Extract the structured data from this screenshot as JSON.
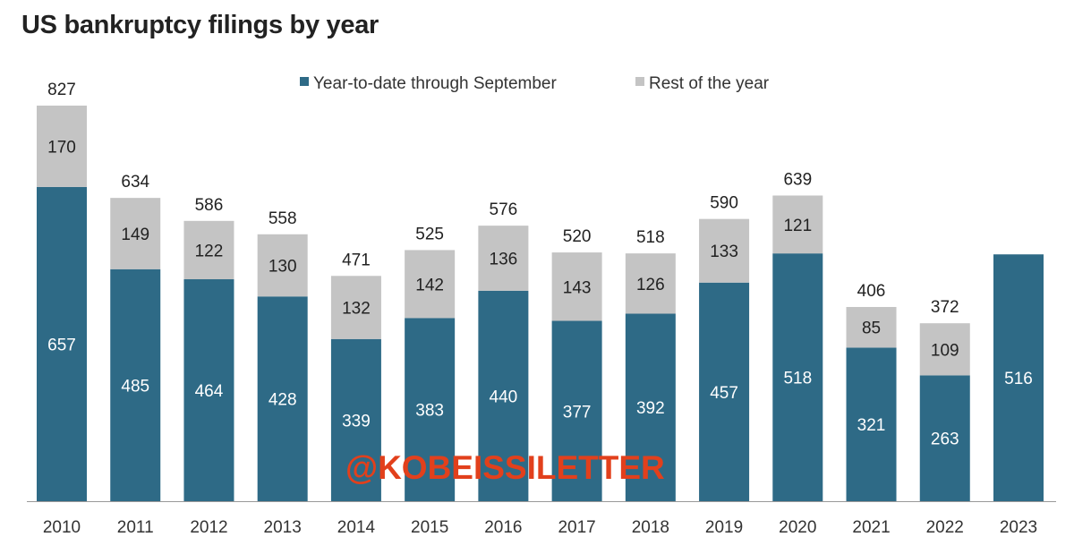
{
  "chart_data": {
    "type": "bar",
    "stacked": true,
    "title": "US bankruptcy filings by year",
    "xlabel": "",
    "ylabel": "",
    "categories": [
      "2010",
      "2011",
      "2012",
      "2013",
      "2014",
      "2015",
      "2016",
      "2017",
      "2018",
      "2019",
      "2020",
      "2021",
      "2022",
      "2023"
    ],
    "series": [
      {
        "name": "Year-to-date through September",
        "color": "#2e6a86",
        "values": [
          657,
          485,
          464,
          428,
          339,
          383,
          440,
          377,
          392,
          457,
          518,
          321,
          263,
          516
        ]
      },
      {
        "name": "Rest of the year",
        "color": "#c4c4c4",
        "values": [
          170,
          149,
          122,
          130,
          132,
          142,
          136,
          143,
          126,
          133,
          121,
          85,
          109,
          null
        ]
      }
    ],
    "totals": [
      827,
      634,
      586,
      558,
      471,
      525,
      576,
      520,
      518,
      590,
      639,
      406,
      372,
      null
    ],
    "ylim": [
      0,
      850
    ],
    "grid": false,
    "legend": "top-center"
  },
  "watermark": "@KOBEISSILETTER"
}
